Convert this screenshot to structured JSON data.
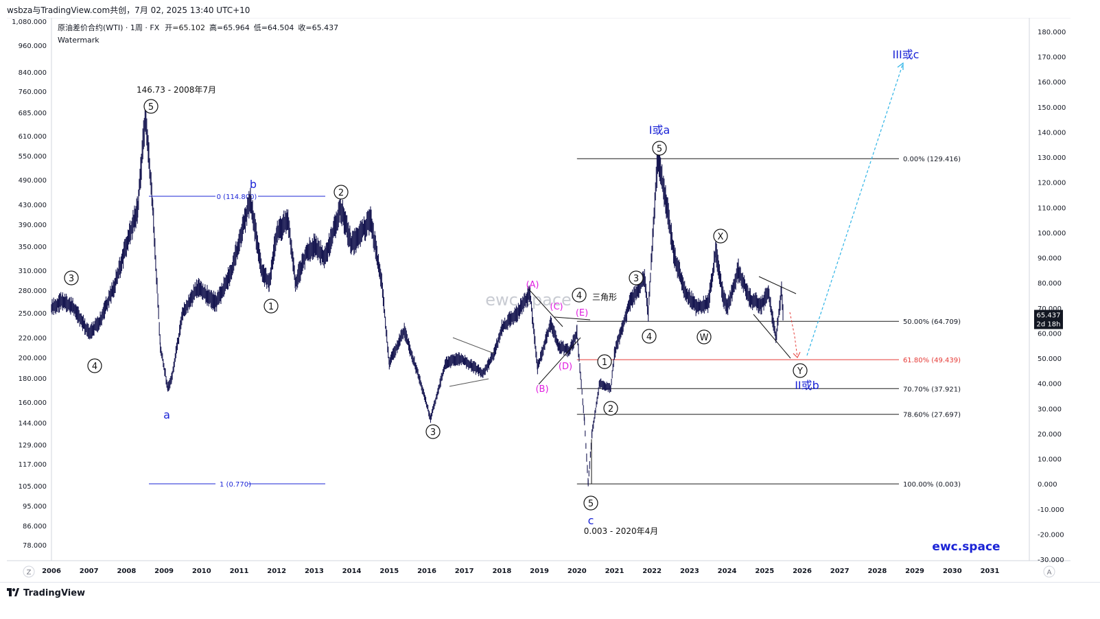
{
  "header": {
    "title": "wsbza与TradingView.com共创，7月 02, 2025 13:40 UTC+10"
  },
  "legend": {
    "symbol": "原油差价合约(WTI) · 1周 · FX",
    "open_label": "开",
    "open": "=65.102",
    "high_label": "高",
    "high": "=65.964",
    "low_label": "低",
    "low": "=64.504",
    "close_label": "收",
    "close": "=65.437",
    "watermark_label": "Watermark"
  },
  "footer": {
    "brand": "TradingView",
    "center_watermark": "ewc.space",
    "corner_watermark": "ewc.space",
    "z_button": "Z",
    "a_button": "A"
  },
  "price_badge": {
    "price": "65.437",
    "countdown": "2d 18h",
    "color": "#131722"
  },
  "colors": {
    "wave": "#1a1a1a",
    "blue": "#1a23d6",
    "magenta": "#e01de0",
    "fib_red": "#e53935",
    "dash_cyan": "#2cb3e6",
    "candle": "#161650"
  },
  "chart_data": {
    "type": "candlestick",
    "x_axis": {
      "labels": [
        "2006",
        "2007",
        "2008",
        "2009",
        "2010",
        "2011",
        "2012",
        "2013",
        "2014",
        "2015",
        "2016",
        "2017",
        "2018",
        "2019",
        "2020",
        "2021",
        "2022",
        "2023",
        "2024",
        "2025",
        "2026",
        "2027",
        "2028",
        "2029",
        "2030",
        "2031"
      ]
    },
    "left_axis": {
      "labels": [
        "1,080.000",
        "960.000",
        "840.000",
        "760.000",
        "685.000",
        "610.000",
        "550.000",
        "490.000",
        "430.000",
        "390.000",
        "350.000",
        "310.000",
        "280.000",
        "250.000",
        "220.000",
        "200.000",
        "180.000",
        "160.000",
        "144.000",
        "129.000",
        "117.000",
        "105.000",
        "95.000",
        "86.000",
        "78.000"
      ]
    },
    "right_axis": {
      "labels": [
        "180.000",
        "170.000",
        "160.000",
        "150.000",
        "140.000",
        "130.000",
        "120.000",
        "110.000",
        "100.000",
        "90.000",
        "80.000",
        "70.000",
        "60.000",
        "50.000",
        "40.000",
        "30.000",
        "20.000",
        "10.000",
        "0.000",
        "-10.000",
        "-20.000",
        "-30.000"
      ],
      "range": [
        -30,
        180
      ]
    },
    "price_path_yearly": [
      [
        2006.0,
        70
      ],
      [
        2006.3,
        73
      ],
      [
        2006.6,
        70
      ],
      [
        2007.0,
        60
      ],
      [
        2007.3,
        65
      ],
      [
        2007.7,
        80
      ],
      [
        2008.0,
        95
      ],
      [
        2008.3,
        110
      ],
      [
        2008.5,
        146.73
      ],
      [
        2008.7,
        110
      ],
      [
        2008.9,
        55
      ],
      [
        2009.1,
        38
      ],
      [
        2009.2,
        42
      ],
      [
        2009.5,
        68
      ],
      [
        2009.9,
        78
      ],
      [
        2010.4,
        72
      ],
      [
        2010.8,
        85
      ],
      [
        2011.3,
        113
      ],
      [
        2011.6,
        85
      ],
      [
        2011.8,
        80
      ],
      [
        2012.0,
        100
      ],
      [
        2012.3,
        105
      ],
      [
        2012.5,
        80
      ],
      [
        2012.8,
        92
      ],
      [
        2013.0,
        95
      ],
      [
        2013.3,
        90
      ],
      [
        2013.7,
        110
      ],
      [
        2014.0,
        95
      ],
      [
        2014.5,
        105
      ],
      [
        2014.8,
        80
      ],
      [
        2015.0,
        48
      ],
      [
        2015.4,
        61
      ],
      [
        2015.8,
        42
      ],
      [
        2016.1,
        26
      ],
      [
        2016.5,
        48
      ],
      [
        2016.9,
        50
      ],
      [
        2017.5,
        44
      ],
      [
        2017.8,
        52
      ],
      [
        2018.0,
        62
      ],
      [
        2018.4,
        68
      ],
      [
        2018.75,
        76
      ],
      [
        2018.95,
        46
      ],
      [
        2019.3,
        64
      ],
      [
        2019.5,
        55
      ],
      [
        2019.8,
        53
      ],
      [
        2020.0,
        60
      ],
      [
        2020.2,
        25
      ],
      [
        2020.3,
        0.003
      ],
      [
        2020.4,
        20
      ],
      [
        2020.6,
        40
      ],
      [
        2020.9,
        38
      ],
      [
        2021.0,
        52
      ],
      [
        2021.4,
        72
      ],
      [
        2021.8,
        82
      ],
      [
        2021.9,
        68
      ],
      [
        2022.15,
        129.416
      ],
      [
        2022.4,
        110
      ],
      [
        2022.6,
        90
      ],
      [
        2022.9,
        76
      ],
      [
        2023.2,
        70
      ],
      [
        2023.5,
        72
      ],
      [
        2023.7,
        93
      ],
      [
        2023.9,
        74
      ],
      [
        2024.0,
        70
      ],
      [
        2024.3,
        85
      ],
      [
        2024.6,
        74
      ],
      [
        2024.9,
        71
      ],
      [
        2025.1,
        76
      ],
      [
        2025.3,
        58
      ],
      [
        2025.45,
        77
      ],
      [
        2025.5,
        65.437
      ]
    ],
    "key_points": [
      {
        "label": "146.73 - 2008年7月",
        "x": 2008.5,
        "y": 146.73
      },
      {
        "label": "0.003 - 2020年4月",
        "x": 2020.3,
        "y": 0.003
      }
    ],
    "fib_right": [
      {
        "label": "0.00% (129.416)",
        "y": 129.416
      },
      {
        "label": "50.00% (64.709)",
        "y": 64.709
      },
      {
        "label": "61.80% (49.439)",
        "y": 49.439
      },
      {
        "label": "70.70% (37.921)",
        "y": 37.921
      },
      {
        "label": "78.60% (27.697)",
        "y": 27.697
      },
      {
        "label": "100.00% (0.003)",
        "y": 0.003
      }
    ],
    "fib_left": [
      {
        "label": "0 (114.800)",
        "y": 114.8
      },
      {
        "label": "1 (0.770)",
        "y": 0.77
      }
    ],
    "wave_labels": {
      "circled": [
        "5",
        "3",
        "4",
        "1",
        "2",
        "3",
        "4",
        "5",
        "1",
        "2",
        "3",
        "4",
        "5",
        "X",
        "W",
        "Y"
      ],
      "blue": [
        "a",
        "b",
        "c",
        "I或a",
        "II或b",
        "III或c"
      ],
      "magenta": [
        "(A)",
        "(B)",
        "(C)",
        "(D)",
        "(E)"
      ],
      "annotation": "三角形"
    }
  }
}
